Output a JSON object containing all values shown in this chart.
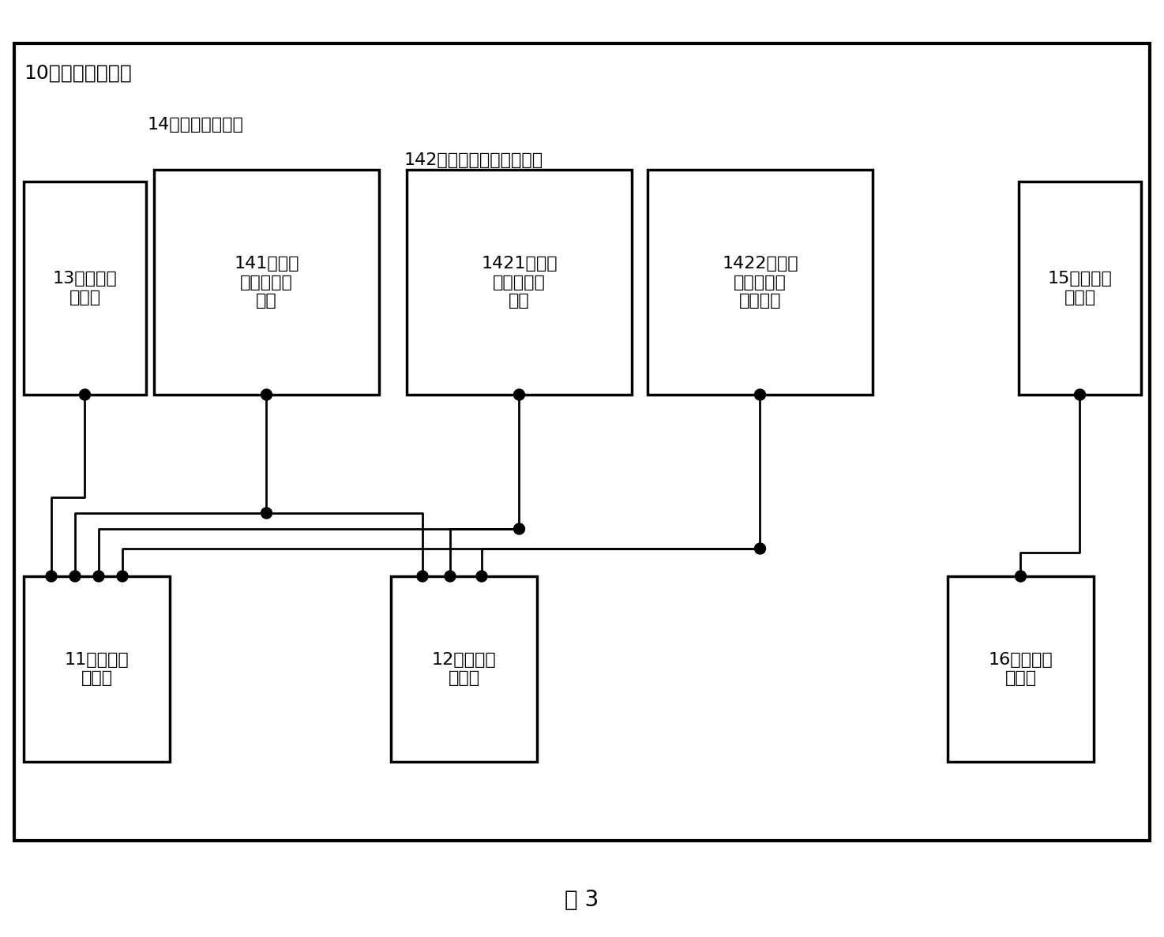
{
  "title_main": "10、计费管理系统",
  "label_14": "14、定义接口单元",
  "label_142": "142、参数描述接口子单元",
  "label_13": "13、名称接\n口单元",
  "label_141": "141、参数\n数目接口子\n单元",
  "label_1421": "1421、参数\n名称接口子\n单元",
  "label_1422": "1422、参数\n数据类型接\n口子单元",
  "label_15": "15、计算接\n口单元",
  "label_11": "11、插件提\n供单元",
  "label_12": "12、模式设\n置单元",
  "label_16": "16、费用计\n算单元",
  "fig_label": "图 3",
  "bg_color": "#ffffff",
  "border_color": "#000000",
  "box_color": "#ffffff",
  "dashed_color": "#000000",
  "text_color": "#000000"
}
